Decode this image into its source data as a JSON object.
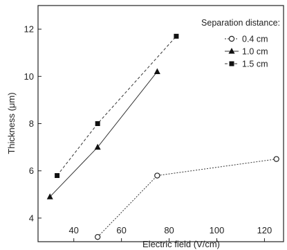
{
  "chart_data": {
    "type": "line",
    "title": "",
    "xlabel": "Electric field (V/cm)",
    "ylabel": "Thickness (μm)",
    "xlim": [
      25,
      128
    ],
    "ylim": [
      3,
      13
    ],
    "xticks": [
      40,
      60,
      80,
      100,
      120
    ],
    "yticks": [
      4,
      6,
      8,
      10,
      12
    ],
    "grid": false,
    "legend": {
      "title": "Separation distance:",
      "placement": "top-right"
    },
    "series": [
      {
        "name": "0.4 cm",
        "marker": "circle-open",
        "line_style": "dotted",
        "x": [
          50,
          75,
          125
        ],
        "y": [
          3.2,
          5.8,
          6.5
        ]
      },
      {
        "name": "1.0 cm",
        "marker": "triangle",
        "line_style": "solid",
        "x": [
          30,
          50,
          75
        ],
        "y": [
          4.9,
          7.0,
          10.2
        ]
      },
      {
        "name": "1.5 cm",
        "marker": "square",
        "line_style": "dashed",
        "x": [
          33,
          50,
          83
        ],
        "y": [
          5.8,
          8.0,
          11.7
        ]
      }
    ]
  }
}
